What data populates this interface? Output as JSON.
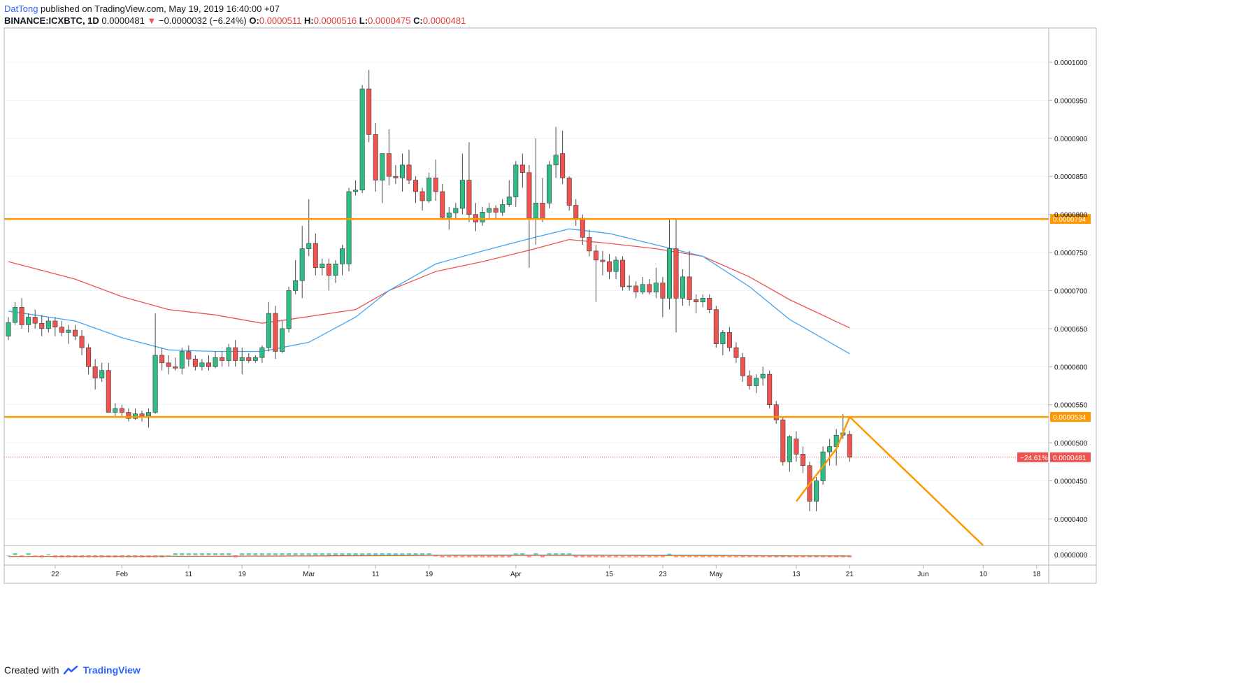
{
  "header": {
    "author": "DatTong",
    "published_text": "published on TradingView.com, May 19, 2019 16:40:00 +07",
    "symbol": "BINANCE:ICXBTC, 1D",
    "last": "0.0000481",
    "change_arrow": "▼",
    "change": "−0.0000032 (−6.24%)",
    "o_label": "O:",
    "o_value": "0.0000511",
    "h_label": "H:",
    "h_value": "0.0000516",
    "l_label": "L:",
    "l_value": "0.0000475",
    "c_label": "C:",
    "c_value": "0.0000481"
  },
  "footer": {
    "created_with": "Created with",
    "brand": "TradingView"
  },
  "colors": {
    "up": "#26a69a",
    "up_fill": "#2ebd85",
    "down": "#ef5350",
    "ema_fast": "#42a5f5",
    "ema_slow": "#ef5350",
    "level": "#ff9800",
    "grid": "#e0e3eb"
  },
  "chart_data": {
    "type": "candlestick",
    "symbol": "BINANCE:ICXBTC",
    "interval": "1D",
    "x_axis_ticks": [
      "22",
      "Feb",
      "11",
      "19",
      "Mar",
      "11",
      "19",
      "Apr",
      "15",
      "23",
      "May",
      "13",
      "21",
      "Jun",
      "10",
      "18"
    ],
    "y_axis_ticks": [
      "0.0000400",
      "0.0000450",
      "0.0000500",
      "0.0000550",
      "0.0000600",
      "0.0000650",
      "0.0000700",
      "0.0000750",
      "0.0000800",
      "0.0000850",
      "0.0000900",
      "0.0000950",
      "0.0001000"
    ],
    "ylim": [
      3.65e-05,
      0.0001045
    ],
    "date_range": [
      "2019-01-15",
      "2019-06-25"
    ],
    "horizontal_levels": [
      {
        "value": 7.94e-05,
        "label": "0.0000794"
      },
      {
        "value": 5.34e-05,
        "label": "0.0000534"
      }
    ],
    "last_price": {
      "value": 4.81e-05,
      "label": "0.0000481",
      "change_label": "−24.61%"
    },
    "projection": [
      {
        "date": "2019-05-21",
        "value": 5.34e-05
      },
      {
        "date": "2019-06-10",
        "value": 3.65e-05
      }
    ],
    "support_trendline": [
      {
        "date": "2019-05-13",
        "value": 4.23e-05
      },
      {
        "date": "2019-05-19",
        "value": 4.92e-05
      }
    ],
    "ohlc": [
      [
        "2019-01-15",
        6.4e-05,
        6.65e-05,
        6.35e-05,
        6.58e-05
      ],
      [
        "2019-01-16",
        6.58e-05,
        6.85e-05,
        6.55e-05,
        6.78e-05
      ],
      [
        "2019-01-17",
        6.78e-05,
        6.9e-05,
        6.5e-05,
        6.55e-05
      ],
      [
        "2019-01-18",
        6.55e-05,
        6.7e-05,
        6.45e-05,
        6.65e-05
      ],
      [
        "2019-01-19",
        6.65e-05,
        6.75e-05,
        6.5e-05,
        6.57e-05
      ],
      [
        "2019-01-20",
        6.57e-05,
        6.68e-05,
        6.4e-05,
        6.5e-05
      ],
      [
        "2019-01-21",
        6.5e-05,
        6.65e-05,
        6.45e-05,
        6.6e-05
      ],
      [
        "2019-01-22",
        6.6e-05,
        6.65e-05,
        6.4e-05,
        6.52e-05
      ],
      [
        "2019-01-23",
        6.52e-05,
        6.6e-05,
        6.4e-05,
        6.45e-05
      ],
      [
        "2019-01-24",
        6.45e-05,
        6.55e-05,
        6.3e-05,
        6.48e-05
      ],
      [
        "2019-01-25",
        6.48e-05,
        6.55e-05,
        6.35e-05,
        6.4e-05
      ],
      [
        "2019-01-26",
        6.4e-05,
        6.48e-05,
        6.15e-05,
        6.25e-05
      ],
      [
        "2019-01-27",
        6.25e-05,
        6.3e-05,
        5.9e-05,
        6e-05
      ],
      [
        "2019-01-28",
        6e-05,
        6.1e-05,
        5.7e-05,
        5.85e-05
      ],
      [
        "2019-01-29",
        5.85e-05,
        6.05e-05,
        5.8e-05,
        5.95e-05
      ],
      [
        "2019-01-30",
        5.95e-05,
        6.05e-05,
        5.4e-05,
        5.4e-05
      ],
      [
        "2019-01-31",
        5.4e-05,
        5.52e-05,
        5.35e-05,
        5.45e-05
      ],
      [
        "2019-02-01",
        5.45e-05,
        5.5e-05,
        5.35e-05,
        5.4e-05
      ],
      [
        "2019-02-02",
        5.4e-05,
        5.45e-05,
        5.28e-05,
        5.32e-05
      ],
      [
        "2019-02-03",
        5.32e-05,
        5.45e-05,
        5.3e-05,
        5.38e-05
      ],
      [
        "2019-02-04",
        5.38e-05,
        5.42e-05,
        5.28e-05,
        5.35e-05
      ],
      [
        "2019-02-05",
        5.35e-05,
        5.45e-05,
        5.2e-05,
        5.4e-05
      ],
      [
        "2019-02-06",
        5.4e-05,
        6.7e-05,
        5.38e-05,
        6.15e-05
      ],
      [
        "2019-02-07",
        6.15e-05,
        6.25e-05,
        5.95e-05,
        6.05e-05
      ],
      [
        "2019-02-08",
        6.05e-05,
        6.15e-05,
        5.9e-05,
        6e-05
      ],
      [
        "2019-02-09",
        6e-05,
        6.12e-05,
        5.95e-05,
        5.98e-05
      ],
      [
        "2019-02-10",
        5.98e-05,
        6.25e-05,
        5.9e-05,
        6.2e-05
      ],
      [
        "2019-02-11",
        6.2e-05,
        6.28e-05,
        6e-05,
        6.1e-05
      ],
      [
        "2019-02-12",
        6.1e-05,
        6.15e-05,
        5.95e-05,
        6e-05
      ],
      [
        "2019-02-13",
        6e-05,
        6.1e-05,
        5.95e-05,
        6.05e-05
      ],
      [
        "2019-02-14",
        6.05e-05,
        6.15e-05,
        5.95e-05,
        6e-05
      ],
      [
        "2019-02-15",
        6e-05,
        6.2e-05,
        5.98e-05,
        6.12e-05
      ],
      [
        "2019-02-16",
        6.12e-05,
        6.2e-05,
        6e-05,
        6.08e-05
      ],
      [
        "2019-02-17",
        6.08e-05,
        6.3e-05,
        6e-05,
        6.25e-05
      ],
      [
        "2019-02-18",
        6.25e-05,
        6.35e-05,
        6e-05,
        6.08e-05
      ],
      [
        "2019-02-19",
        6.08e-05,
        6.25e-05,
        5.9e-05,
        6.12e-05
      ],
      [
        "2019-02-20",
        6.12e-05,
        6.18e-05,
        6.05e-05,
        6.08e-05
      ],
      [
        "2019-02-21",
        6.08e-05,
        6.15e-05,
        6.05e-05,
        6.12e-05
      ],
      [
        "2019-02-22",
        6.12e-05,
        6.28e-05,
        6.05e-05,
        6.25e-05
      ],
      [
        "2019-02-23",
        6.25e-05,
        6.85e-05,
        6.2e-05,
        6.7e-05
      ],
      [
        "2019-02-24",
        6.7e-05,
        6.8e-05,
        6.1e-05,
        6.2e-05
      ],
      [
        "2019-02-25",
        6.2e-05,
        6.6e-05,
        6.18e-05,
        6.5e-05
      ],
      [
        "2019-02-26",
        6.5e-05,
        7.05e-05,
        6.45e-05,
        7e-05
      ],
      [
        "2019-02-27",
        7e-05,
        7.4e-05,
        6.95e-05,
        7.13e-05
      ],
      [
        "2019-02-28",
        7.13e-05,
        7.85e-05,
        6.9e-05,
        7.55e-05
      ],
      [
        "2019-03-01",
        7.55e-05,
        8.2e-05,
        7.45e-05,
        7.62e-05
      ],
      [
        "2019-03-02",
        7.62e-05,
        7.75e-05,
        7.2e-05,
        7.3e-05
      ],
      [
        "2019-03-03",
        7.3e-05,
        7.42e-05,
        7.2e-05,
        7.35e-05
      ],
      [
        "2019-03-04",
        7.35e-05,
        7.42e-05,
        7e-05,
        7.2e-05
      ],
      [
        "2019-03-05",
        7.2e-05,
        7.4e-05,
        7.1e-05,
        7.35e-05
      ],
      [
        "2019-03-06",
        7.35e-05,
        7.6e-05,
        7.2e-05,
        7.55e-05
      ],
      [
        "2019-03-07",
        7.35e-05,
        8.35e-05,
        7.25e-05,
        8.3e-05
      ],
      [
        "2019-03-08",
        8.3e-05,
        8.45e-05,
        8.25e-05,
        8.32e-05
      ],
      [
        "2019-03-09",
        8.32e-05,
        9.7e-05,
        8.28e-05,
        9.65e-05
      ],
      [
        "2019-03-10",
        9.65e-05,
        9.9e-05,
        8.95e-05,
        9.05e-05
      ],
      [
        "2019-03-11",
        9.05e-05,
        9.2e-05,
        8.3e-05,
        8.45e-05
      ],
      [
        "2019-03-12",
        8.45e-05,
        8.8e-05,
        8.15e-05,
        8.8e-05
      ],
      [
        "2019-03-13",
        8.8e-05,
        9.12e-05,
        8.38e-05,
        8.5e-05
      ],
      [
        "2019-03-14",
        8.5e-05,
        8.65e-05,
        8.4e-05,
        8.48e-05
      ],
      [
        "2019-03-15",
        8.48e-05,
        8.8e-05,
        8.3e-05,
        8.65e-05
      ],
      [
        "2019-03-16",
        8.65e-05,
        8.85e-05,
        8.4e-05,
        8.45e-05
      ],
      [
        "2019-03-17",
        8.45e-05,
        8.5e-05,
        8.15e-05,
        8.3e-05
      ],
      [
        "2019-03-18",
        8.3e-05,
        8.35e-05,
        8.05e-05,
        8.18e-05
      ],
      [
        "2019-03-19",
        8.18e-05,
        8.55e-05,
        8.15e-05,
        8.48e-05
      ],
      [
        "2019-03-20",
        8.48e-05,
        8.72e-05,
        8.18e-05,
        8.3e-05
      ],
      [
        "2019-03-21",
        8.3e-05,
        8.4e-05,
        7.95e-05,
        7.96e-05
      ],
      [
        "2019-03-22",
        7.96e-05,
        8.1e-05,
        7.8e-05,
        8.02e-05
      ],
      [
        "2019-03-23",
        8.02e-05,
        8.15e-05,
        7.95e-05,
        8.08e-05
      ],
      [
        "2019-03-24",
        8.08e-05,
        8.8e-05,
        8e-05,
        8.45e-05
      ],
      [
        "2019-03-25",
        8.45e-05,
        8.95e-05,
        7.9e-05,
        8e-05
      ],
      [
        "2019-03-26",
        8e-05,
        8.15e-05,
        7.78e-05,
        7.9e-05
      ],
      [
        "2019-03-27",
        7.9e-05,
        8.1e-05,
        7.85e-05,
        8.03e-05
      ],
      [
        "2019-03-28",
        8.03e-05,
        8.15e-05,
        7.95e-05,
        8.08e-05
      ],
      [
        "2019-03-29",
        8.08e-05,
        8.12e-05,
        7.95e-05,
        8.03e-05
      ],
      [
        "2019-03-30",
        8.03e-05,
        8.2e-05,
        7.98e-05,
        8.13e-05
      ],
      [
        "2019-03-31",
        8.13e-05,
        8.45e-05,
        8.1e-05,
        8.23e-05
      ],
      [
        "2019-04-01",
        8.23e-05,
        8.7e-05,
        8.1e-05,
        8.65e-05
      ],
      [
        "2019-04-02",
        8.65e-05,
        8.8e-05,
        8.35e-05,
        8.55e-05
      ],
      [
        "2019-04-03",
        8.55e-05,
        8.65e-05,
        7.3e-05,
        7.95e-05
      ],
      [
        "2019-04-04",
        7.95e-05,
        9e-05,
        7.6e-05,
        8.15e-05
      ],
      [
        "2019-04-05",
        8.15e-05,
        8.48e-05,
        7.9e-05,
        7.95e-05
      ],
      [
        "2019-04-06",
        8.15e-05,
        8.7e-05,
        8.08e-05,
        8.65e-05
      ],
      [
        "2019-04-07",
        8.65e-05,
        9.15e-05,
        8.48e-05,
        8.78e-05
      ],
      [
        "2019-04-08",
        8.8e-05,
        9.1e-05,
        8.4e-05,
        8.48e-05
      ],
      [
        "2019-04-09",
        8.48e-05,
        8.5e-05,
        8.05e-05,
        8.12e-05
      ],
      [
        "2019-04-10",
        8.12e-05,
        8.2e-05,
        7.85e-05,
        7.95e-05
      ],
      [
        "2019-04-11",
        7.95e-05,
        8e-05,
        7.6e-05,
        7.7e-05
      ],
      [
        "2019-04-12",
        7.7e-05,
        7.8e-05,
        7.45e-05,
        7.52e-05
      ],
      [
        "2019-04-13",
        7.52e-05,
        7.6e-05,
        6.85e-05,
        7.4e-05
      ],
      [
        "2019-04-14",
        7.4e-05,
        7.52e-05,
        7.2e-05,
        7.38e-05
      ],
      [
        "2019-04-15",
        7.38e-05,
        7.48e-05,
        7.15e-05,
        7.25e-05
      ],
      [
        "2019-04-16",
        7.25e-05,
        7.45e-05,
        7.15e-05,
        7.4e-05
      ],
      [
        "2019-04-17",
        7.4e-05,
        7.45e-05,
        7e-05,
        7.05e-05
      ],
      [
        "2019-04-18",
        7.05e-05,
        7.2e-05,
        7e-05,
        7.06e-05
      ],
      [
        "2019-04-19",
        7.06e-05,
        7.12e-05,
        6.9e-05,
        6.98e-05
      ],
      [
        "2019-04-20",
        6.98e-05,
        7.18e-05,
        6.95e-05,
        7.08e-05
      ],
      [
        "2019-04-21",
        7.08e-05,
        7.15e-05,
        6.95e-05,
        6.98e-05
      ],
      [
        "2019-04-22",
        6.98e-05,
        7.3e-05,
        6.9e-05,
        7.1e-05
      ],
      [
        "2019-04-23",
        7.1e-05,
        7.18e-05,
        6.65e-05,
        6.9e-05
      ],
      [
        "2019-04-24",
        6.9e-05,
        7.94e-05,
        6.75e-05,
        7.55e-05
      ],
      [
        "2019-04-25",
        7.55e-05,
        7.94e-05,
        6.45e-05,
        6.9e-05
      ],
      [
        "2019-04-26",
        6.9e-05,
        7.28e-05,
        6.8e-05,
        7.18e-05
      ],
      [
        "2019-04-27",
        7.18e-05,
        7.52e-05,
        6.8e-05,
        6.88e-05
      ],
      [
        "2019-04-28",
        6.88e-05,
        6.95e-05,
        6.7e-05,
        6.85e-05
      ],
      [
        "2019-04-29",
        6.85e-05,
        6.95e-05,
        6.78e-05,
        6.9e-05
      ],
      [
        "2019-04-30",
        6.9e-05,
        6.95e-05,
        6.7e-05,
        6.75e-05
      ],
      [
        "2019-05-01",
        6.75e-05,
        6.8e-05,
        6.25e-05,
        6.3e-05
      ],
      [
        "2019-05-02",
        6.3e-05,
        6.48e-05,
        6.15e-05,
        6.45e-05
      ],
      [
        "2019-05-03",
        6.45e-05,
        6.52e-05,
        6.2e-05,
        6.25e-05
      ],
      [
        "2019-05-04",
        6.25e-05,
        6.32e-05,
        6.05e-05,
        6.12e-05
      ],
      [
        "2019-05-05",
        6.12e-05,
        6.18e-05,
        5.8e-05,
        5.88e-05
      ],
      [
        "2019-05-06",
        5.88e-05,
        5.95e-05,
        5.7e-05,
        5.75e-05
      ],
      [
        "2019-05-07",
        5.75e-05,
        5.9e-05,
        5.65e-05,
        5.85e-05
      ],
      [
        "2019-05-08",
        5.85e-05,
        6e-05,
        5.75e-05,
        5.9e-05
      ],
      [
        "2019-05-09",
        5.9e-05,
        5.95e-05,
        5.45e-05,
        5.5e-05
      ],
      [
        "2019-05-10",
        5.5e-05,
        5.55e-05,
        5.25e-05,
        5.3e-05
      ],
      [
        "2019-05-11",
        5.3e-05,
        5.34e-05,
        4.7e-05,
        4.75e-05
      ],
      [
        "2019-05-12",
        4.75e-05,
        5.1e-05,
        4.62e-05,
        5.08e-05
      ],
      [
        "2019-05-13",
        5.05e-05,
        5.15e-05,
        4.75e-05,
        4.85e-05
      ],
      [
        "2019-05-14",
        4.85e-05,
        4.95e-05,
        4.6e-05,
        4.7e-05
      ],
      [
        "2019-05-15",
        4.7e-05,
        4.75e-05,
        4.1e-05,
        4.23e-05
      ],
      [
        "2019-05-16",
        4.23e-05,
        4.55e-05,
        4.1e-05,
        4.5e-05
      ],
      [
        "2019-05-17",
        4.5e-05,
        4.95e-05,
        4.45e-05,
        4.88e-05
      ],
      [
        "2019-05-18",
        4.88e-05,
        5.05e-05,
        4.7e-05,
        4.95e-05
      ],
      [
        "2019-05-19",
        4.95e-05,
        5.18e-05,
        4.7e-05,
        5.1e-05
      ],
      [
        "2019-05-20",
        5.1e-05,
        5.38e-05,
        5.05e-05,
        5.13e-05
      ],
      [
        "2019-05-21",
        5.11e-05,
        5.16e-05,
        4.75e-05,
        4.81e-05
      ]
    ],
    "ema_fast": [
      [
        "2019-01-15",
        6.73e-05
      ],
      [
        "2019-01-25",
        6.6e-05
      ],
      [
        "2019-02-01",
        6.38e-05
      ],
      [
        "2019-02-08",
        6.22e-05
      ],
      [
        "2019-02-15",
        6.2e-05
      ],
      [
        "2019-02-22",
        6.2e-05
      ],
      [
        "2019-03-01",
        6.32e-05
      ],
      [
        "2019-03-08",
        6.65e-05
      ],
      [
        "2019-03-13",
        7e-05
      ],
      [
        "2019-03-20",
        7.35e-05
      ],
      [
        "2019-03-27",
        7.52e-05
      ],
      [
        "2019-04-03",
        7.68e-05
      ],
      [
        "2019-04-09",
        7.81e-05
      ],
      [
        "2019-04-15",
        7.75e-05
      ],
      [
        "2019-04-22",
        7.6e-05
      ],
      [
        "2019-04-29",
        7.45e-05
      ],
      [
        "2019-05-06",
        7.05e-05
      ],
      [
        "2019-05-12",
        6.62e-05
      ],
      [
        "2019-05-21",
        6.17e-05
      ]
    ],
    "ema_slow": [
      [
        "2019-01-15",
        7.38e-05
      ],
      [
        "2019-01-25",
        7.15e-05
      ],
      [
        "2019-02-01",
        6.92e-05
      ],
      [
        "2019-02-08",
        6.75e-05
      ],
      [
        "2019-02-15",
        6.68e-05
      ],
      [
        "2019-02-22",
        6.57e-05
      ],
      [
        "2019-02-26",
        6.62e-05
      ],
      [
        "2019-03-08",
        6.75e-05
      ],
      [
        "2019-03-13",
        7e-05
      ],
      [
        "2019-03-20",
        7.25e-05
      ],
      [
        "2019-03-27",
        7.38e-05
      ],
      [
        "2019-04-03",
        7.53e-05
      ],
      [
        "2019-04-09",
        7.67e-05
      ],
      [
        "2019-04-15",
        7.62e-05
      ],
      [
        "2019-04-22",
        7.55e-05
      ],
      [
        "2019-04-29",
        7.45e-05
      ],
      [
        "2019-05-06",
        7.18e-05
      ],
      [
        "2019-05-12",
        6.88e-05
      ],
      [
        "2019-05-21",
        6.51e-05
      ]
    ],
    "indicator_pane": {
      "type": "macd",
      "y_axis_ticks": [
        "0.0000000"
      ],
      "note_values": "histogram and two lines near zero"
    }
  }
}
